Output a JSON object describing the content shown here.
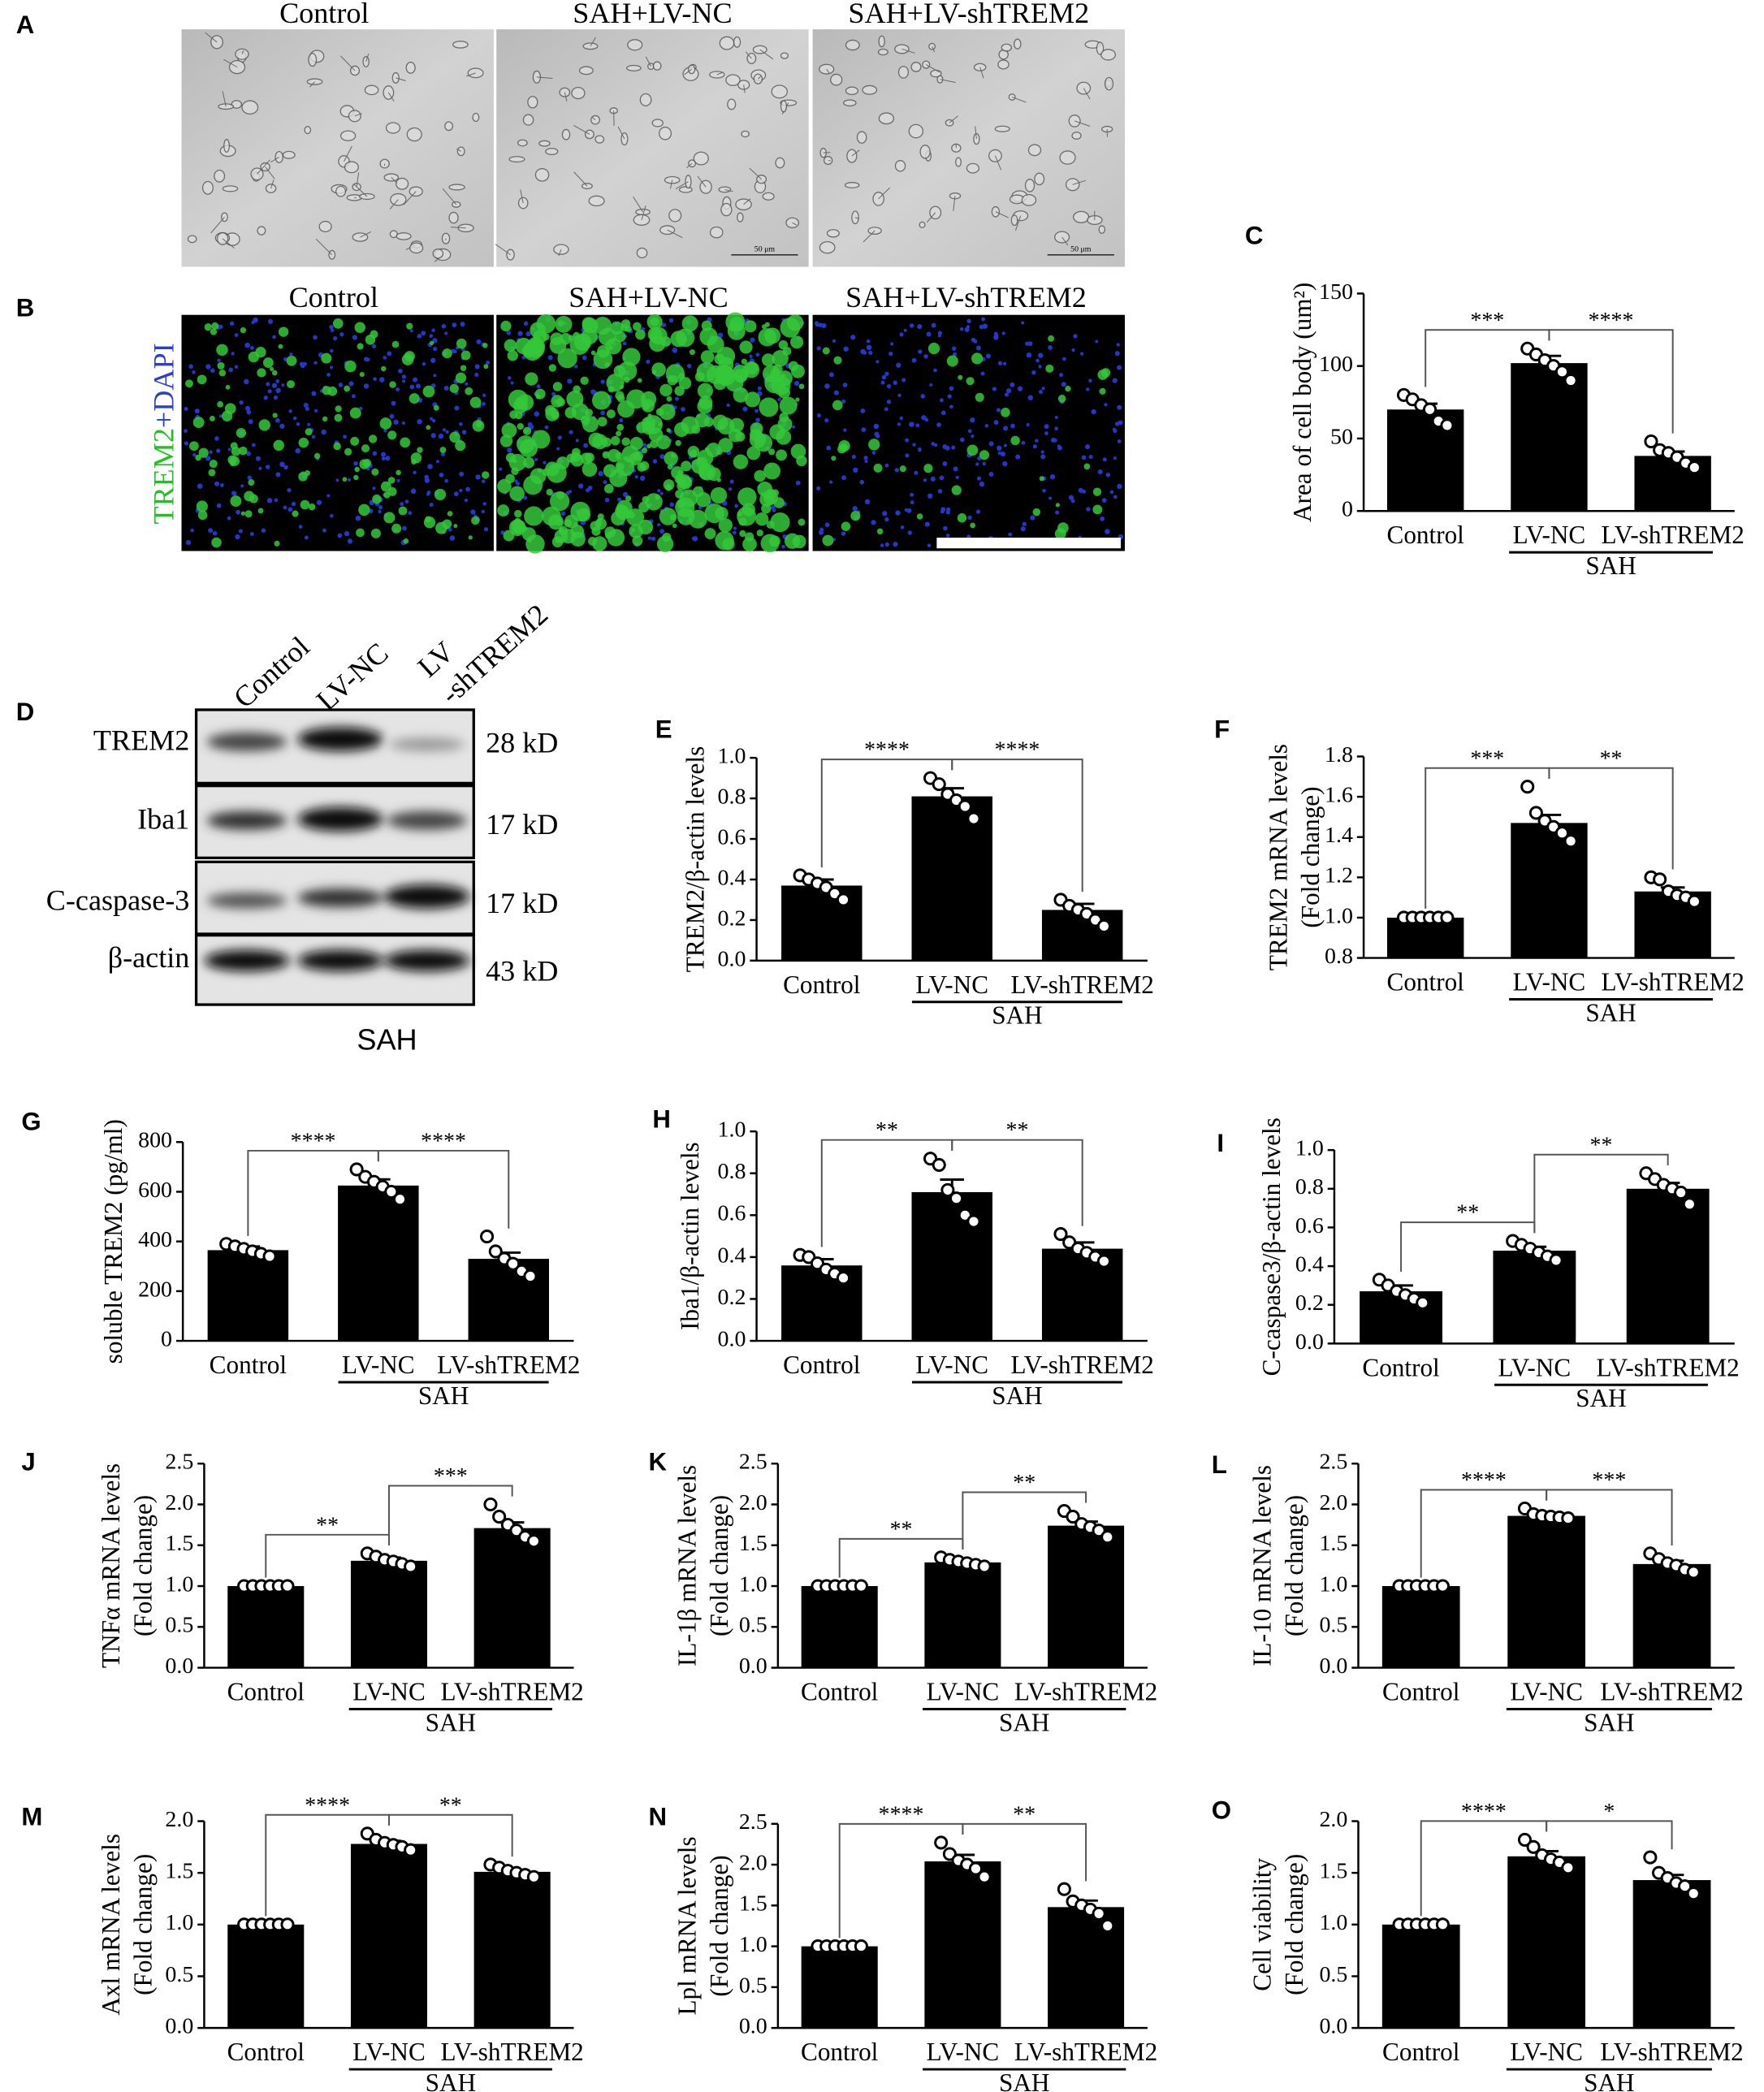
{
  "micrographs": [
    {
      "panel": "A",
      "titles": [
        "Control",
        "SAH+LV-NC",
        "SAH+LV-shTREM2"
      ],
      "scale_bar": "50 μm"
    },
    {
      "panel": "B",
      "titles": [
        "Control",
        "SAH+LV-NC",
        "SAH+LV-shTREM2"
      ],
      "stain": [
        "TREM2",
        "+DAPI"
      ]
    }
  ],
  "western_blot": {
    "panel": "D",
    "lanes": [
      [
        "Control"
      ],
      [
        "LV-NC"
      ],
      [
        "LV",
        "-shTREM2"
      ]
    ],
    "rows": [
      {
        "protein": "TREM2",
        "size": "28 kD"
      },
      {
        "protein": "Iba1",
        "size": "17 kD"
      },
      {
        "protein": "C-caspase-3",
        "size": "17 kD"
      },
      {
        "protein": "β-actin",
        "size": "43 kD"
      }
    ],
    "group": "SAH"
  },
  "chart_data": [
    {
      "type": "bar",
      "panel": "C",
      "ylabel": [
        "Area of cell body (um²)"
      ],
      "categories": [
        "Control",
        "LV-NC",
        "LV-shTREM2"
      ],
      "group": {
        "label": "SAH",
        "from": 1,
        "to": 2
      },
      "color": "#000000",
      "values": [
        70,
        102,
        38
      ],
      "errors": [
        4,
        5,
        3
      ],
      "points": [
        [
          80,
          77,
          73,
          70,
          62,
          59
        ],
        [
          112,
          108,
          104,
          100,
          96,
          90
        ],
        [
          48,
          42,
          40,
          37,
          33,
          30
        ]
      ],
      "ylim": [
        0,
        150
      ],
      "yticks": [
        0,
        50,
        100,
        150
      ],
      "significance": [
        {
          "from": 0,
          "to": 1,
          "text": "***"
        },
        {
          "from": 1,
          "to": 2,
          "text": "****"
        }
      ]
    },
    {
      "type": "bar",
      "panel": "E",
      "ylabel": [
        "TREM2/β-actin levels"
      ],
      "categories": [
        "Control",
        "LV-NC",
        "LV-shTREM2"
      ],
      "group": {
        "label": "SAH",
        "from": 1,
        "to": 2
      },
      "color": "#000000",
      "values": [
        0.37,
        0.81,
        0.25
      ],
      "errors": [
        0.03,
        0.04,
        0.03
      ],
      "points": [
        [
          0.42,
          0.4,
          0.38,
          0.36,
          0.33,
          0.3
        ],
        [
          0.9,
          0.87,
          0.82,
          0.79,
          0.76,
          0.7
        ],
        [
          0.3,
          0.27,
          0.25,
          0.23,
          0.2,
          0.17
        ]
      ],
      "ylim": [
        0,
        1
      ],
      "yticks": [
        {
          "value": 0,
          "label": "0.0"
        },
        0.2,
        0.4,
        0.6,
        0.8,
        {
          "value": 1,
          "label": "1.0"
        }
      ],
      "significance": [
        {
          "from": 0,
          "to": 1,
          "text": "****"
        },
        {
          "from": 1,
          "to": 2,
          "text": "****"
        }
      ]
    },
    {
      "type": "bar",
      "panel": "F",
      "ylabel": [
        "TREM2 mRNA levels",
        "(Fold change)"
      ],
      "categories": [
        "Control",
        "LV-NC",
        "LV-shTREM2"
      ],
      "group": {
        "label": "SAH",
        "from": 1,
        "to": 2
      },
      "color": "#000000",
      "values": [
        1.0,
        1.47,
        1.13
      ],
      "errors": [
        0.005,
        0.04,
        0.02
      ],
      "points": [
        [
          1.0,
          1.0,
          1.0,
          1.0,
          1.0,
          1.0
        ],
        [
          1.65,
          1.52,
          1.48,
          1.45,
          1.42,
          1.38
        ],
        [
          1.2,
          1.19,
          1.13,
          1.11,
          1.1,
          1.08
        ]
      ],
      "ylim": [
        0.8,
        1.8
      ],
      "yticks": [
        0.8,
        {
          "value": 1,
          "label": "1.0"
        },
        1.2,
        1.4,
        1.6,
        1.8
      ],
      "significance": [
        {
          "from": 0,
          "to": 1,
          "text": "***"
        },
        {
          "from": 1,
          "to": 2,
          "text": "**"
        }
      ]
    },
    {
      "type": "bar",
      "panel": "G",
      "ylabel": [
        "soluble TREM2 (pg/ml)"
      ],
      "categories": [
        "Control",
        "LV-NC",
        "LV-shTREM2"
      ],
      "group": {
        "label": "SAH",
        "from": 1,
        "to": 2
      },
      "color": "#000000",
      "values": [
        365,
        625,
        330
      ],
      "errors": [
        15,
        25,
        25
      ],
      "points": [
        [
          390,
          380,
          370,
          360,
          350,
          340
        ],
        [
          690,
          660,
          640,
          620,
          600,
          570
        ],
        [
          420,
          360,
          330,
          310,
          280,
          260
        ]
      ],
      "ylim": [
        0,
        800
      ],
      "yticks": [
        0,
        200,
        400,
        600,
        800
      ],
      "significance": [
        {
          "from": 0,
          "to": 1,
          "text": "****"
        },
        {
          "from": 1,
          "to": 2,
          "text": "****"
        }
      ]
    },
    {
      "type": "bar",
      "panel": "H",
      "ylabel": [
        "Iba1/β-actin levels"
      ],
      "categories": [
        "Control",
        "LV-NC",
        "LV-shTREM2"
      ],
      "group": {
        "label": "SAH",
        "from": 1,
        "to": 2
      },
      "color": "#000000",
      "values": [
        0.36,
        0.71,
        0.44
      ],
      "errors": [
        0.03,
        0.06,
        0.03
      ],
      "points": [
        [
          0.41,
          0.4,
          0.37,
          0.34,
          0.32,
          0.3
        ],
        [
          0.87,
          0.84,
          0.72,
          0.68,
          0.6,
          0.57
        ],
        [
          0.51,
          0.47,
          0.44,
          0.42,
          0.4,
          0.38
        ]
      ],
      "ylim": [
        0,
        1
      ],
      "yticks": [
        {
          "value": 0,
          "label": "0.0"
        },
        0.2,
        0.4,
        0.6,
        0.8,
        {
          "value": 1,
          "label": "1.0"
        }
      ],
      "significance": [
        {
          "from": 0,
          "to": 1,
          "text": "**"
        },
        {
          "from": 1,
          "to": 2,
          "text": "**"
        }
      ]
    },
    {
      "type": "bar",
      "panel": "I",
      "ylabel": [
        "C-caspase3/β-actin levels"
      ],
      "categories": [
        "Control",
        "LV-NC",
        "LV-shTREM2"
      ],
      "group": {
        "label": "SAH",
        "from": 1,
        "to": 2
      },
      "color": "#000000",
      "values": [
        0.27,
        0.48,
        0.8
      ],
      "errors": [
        0.03,
        0.02,
        0.03
      ],
      "points": [
        [
          0.33,
          0.3,
          0.27,
          0.25,
          0.23,
          0.21
        ],
        [
          0.53,
          0.51,
          0.49,
          0.47,
          0.45,
          0.43
        ],
        [
          0.88,
          0.85,
          0.82,
          0.8,
          0.78,
          0.72
        ]
      ],
      "ylim": [
        0,
        1
      ],
      "yticks": [
        {
          "value": 0,
          "label": "0.0"
        },
        0.2,
        0.4,
        0.6,
        0.8,
        {
          "value": 1,
          "label": "1.0"
        }
      ],
      "significance": [
        {
          "from": 0,
          "to": 1,
          "text": "**"
        },
        {
          "from": 1,
          "to": 2,
          "text": "**"
        }
      ]
    },
    {
      "type": "bar",
      "panel": "J",
      "ylabel": [
        "TNFα mRNA levels",
        "(Fold change)"
      ],
      "categories": [
        "Control",
        "LV-NC",
        "LV-shTREM2"
      ],
      "group": {
        "label": "SAH",
        "from": 1,
        "to": 2
      },
      "color": "#000000",
      "values": [
        1.0,
        1.31,
        1.71
      ],
      "errors": [
        0.005,
        0.04,
        0.07
      ],
      "points": [
        [
          1.0,
          1.0,
          1.0,
          1.0,
          1.0,
          1.0
        ],
        [
          1.4,
          1.36,
          1.32,
          1.3,
          1.27,
          1.24
        ],
        [
          2.0,
          1.85,
          1.75,
          1.68,
          1.6,
          1.55
        ]
      ],
      "ylim": [
        0,
        2.5
      ],
      "yticks": [
        {
          "value": 0,
          "label": "0.0"
        },
        0.5,
        {
          "value": 1,
          "label": "1.0"
        },
        1.5,
        {
          "value": 2,
          "label": "2.0"
        },
        2.5
      ],
      "significance": [
        {
          "from": 0,
          "to": 1,
          "text": "**"
        },
        {
          "from": 1,
          "to": 2,
          "text": "***"
        }
      ]
    },
    {
      "type": "bar",
      "panel": "K",
      "ylabel": [
        "IL-1β mRNA levels",
        "(Fold change)"
      ],
      "categories": [
        "Control",
        "LV-NC",
        "LV-shTREM2"
      ],
      "group": {
        "label": "SAH",
        "from": 1,
        "to": 2
      },
      "color": "#000000",
      "values": [
        1.0,
        1.29,
        1.74
      ],
      "errors": [
        0.005,
        0.03,
        0.05
      ],
      "points": [
        [
          1.0,
          1.0,
          1.0,
          1.0,
          1.0,
          1.0
        ],
        [
          1.35,
          1.32,
          1.3,
          1.28,
          1.26,
          1.24
        ],
        [
          1.92,
          1.85,
          1.76,
          1.72,
          1.68,
          1.6
        ]
      ],
      "ylim": [
        0,
        2.5
      ],
      "yticks": [
        {
          "value": 0,
          "label": "0.0"
        },
        0.5,
        {
          "value": 1,
          "label": "1.0"
        },
        1.5,
        {
          "value": 2,
          "label": "2.0"
        },
        2.5
      ],
      "significance": [
        {
          "from": 0,
          "to": 1,
          "text": "**"
        },
        {
          "from": 1,
          "to": 2,
          "text": "**"
        }
      ]
    },
    {
      "type": "bar",
      "panel": "L",
      "ylabel": [
        "IL-10 mRNA levels",
        "(Fold change)"
      ],
      "categories": [
        "Control",
        "LV-NC",
        "LV-shTREM2"
      ],
      "group": {
        "label": "SAH",
        "from": 1,
        "to": 2
      },
      "color": "#000000",
      "values": [
        1.0,
        1.86,
        1.27
      ],
      "errors": [
        0.005,
        0.03,
        0.04
      ],
      "points": [
        [
          1.0,
          1.0,
          1.0,
          1.0,
          1.0,
          1.0
        ],
        [
          1.95,
          1.88,
          1.86,
          1.85,
          1.84,
          1.83
        ],
        [
          1.4,
          1.33,
          1.28,
          1.25,
          1.2,
          1.17
        ]
      ],
      "ylim": [
        0,
        2.5
      ],
      "yticks": [
        {
          "value": 0,
          "label": "0.0"
        },
        0.5,
        {
          "value": 1,
          "label": "1.0"
        },
        1.5,
        {
          "value": 2,
          "label": "2.0"
        },
        2.5
      ],
      "significance": [
        {
          "from": 0,
          "to": 1,
          "text": "****"
        },
        {
          "from": 1,
          "to": 2,
          "text": "***"
        }
      ]
    },
    {
      "type": "bar",
      "panel": "M",
      "ylabel": [
        "Axl mRNA levels",
        "(Fold change)"
      ],
      "categories": [
        "Control",
        "LV-NC",
        "LV-shTREM2"
      ],
      "group": {
        "label": "SAH",
        "from": 1,
        "to": 2
      },
      "color": "#000000",
      "values": [
        1.0,
        1.78,
        1.51
      ],
      "errors": [
        0.005,
        0.03,
        0.02
      ],
      "points": [
        [
          1.0,
          1.0,
          1.0,
          1.0,
          1.0,
          1.0
        ],
        [
          1.88,
          1.82,
          1.79,
          1.77,
          1.75,
          1.72
        ],
        [
          1.58,
          1.55,
          1.52,
          1.5,
          1.48,
          1.46
        ]
      ],
      "ylim": [
        0,
        2
      ],
      "yticks": [
        {
          "value": 0,
          "label": "0.0"
        },
        0.5,
        {
          "value": 1,
          "label": "1.0"
        },
        1.5,
        {
          "value": 2,
          "label": "2.0"
        }
      ],
      "significance": [
        {
          "from": 0,
          "to": 1,
          "text": "****"
        },
        {
          "from": 1,
          "to": 2,
          "text": "**"
        }
      ]
    },
    {
      "type": "bar",
      "panel": "N",
      "ylabel": [
        "Lpl mRNA levels",
        "(Fold change)"
      ],
      "categories": [
        "Control",
        "LV-NC",
        "LV-shTREM2"
      ],
      "group": {
        "label": "SAH",
        "from": 1,
        "to": 2
      },
      "color": "#000000",
      "values": [
        1.0,
        2.04,
        1.48
      ],
      "errors": [
        0.005,
        0.08,
        0.08
      ],
      "points": [
        [
          1.0,
          1.0,
          1.0,
          1.0,
          1.0,
          1.0
        ],
        [
          2.27,
          2.13,
          2.05,
          2.0,
          1.95,
          1.85
        ],
        [
          1.7,
          1.55,
          1.5,
          1.45,
          1.4,
          1.25
        ]
      ],
      "ylim": [
        0,
        2.5
      ],
      "yticks": [
        {
          "value": 0,
          "label": "0.0"
        },
        0.5,
        {
          "value": 1,
          "label": "1.0"
        },
        1.5,
        {
          "value": 2,
          "label": "2.0"
        },
        2.5
      ],
      "significance": [
        {
          "from": 0,
          "to": 1,
          "text": "****"
        },
        {
          "from": 1,
          "to": 2,
          "text": "**"
        }
      ]
    },
    {
      "type": "bar",
      "panel": "O",
      "ylabel": [
        "Cell viability",
        "(Fold change)"
      ],
      "categories": [
        "Control",
        "LV-NC",
        "LV-shTREM2"
      ],
      "group": {
        "label": "SAH",
        "from": 1,
        "to": 2
      },
      "color": "#000000",
      "values": [
        1.0,
        1.66,
        1.43
      ],
      "errors": [
        0.005,
        0.05,
        0.05
      ],
      "points": [
        [
          1.0,
          1.0,
          1.0,
          1.0,
          1.0,
          1.0
        ],
        [
          1.82,
          1.75,
          1.67,
          1.63,
          1.6,
          1.55
        ],
        [
          1.65,
          1.5,
          1.45,
          1.4,
          1.37,
          1.3
        ]
      ],
      "ylim": [
        0,
        2
      ],
      "yticks": [
        {
          "value": 0,
          "label": "0.0"
        },
        0.5,
        {
          "value": 1,
          "label": "1.0"
        },
        1.5,
        {
          "value": 2,
          "label": "2.0"
        }
      ],
      "significance": [
        {
          "from": 0,
          "to": 1,
          "text": "****"
        },
        {
          "from": 1,
          "to": 2,
          "text": "*"
        }
      ]
    }
  ]
}
